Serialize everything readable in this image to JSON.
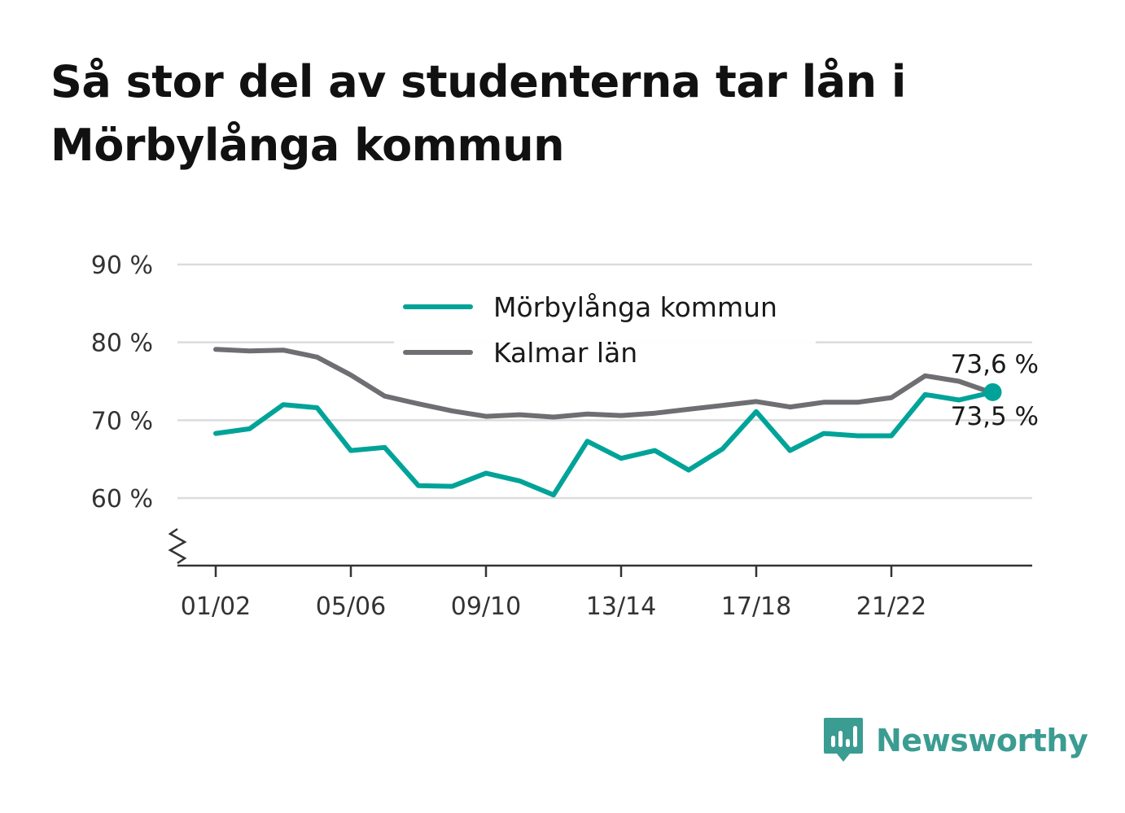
{
  "title": "Så stor del av studenterna tar lån i Mörbylånga kommun",
  "brand": {
    "name": "Newsworthy",
    "icon": "newsworthy-logo-icon",
    "color": "#3b9c92"
  },
  "chart_data": {
    "type": "line",
    "title": "Så stor del av studenterna tar lån i Mörbylånga kommun",
    "xlabel": "",
    "ylabel": "",
    "ylim": [
      51,
      90
    ],
    "yticks": [
      60,
      70,
      80,
      90
    ],
    "ytick_labels": [
      "60 %",
      "70 %",
      "80 %",
      "90 %"
    ],
    "y_axis_break": true,
    "grid": true,
    "legend_position": "top-center",
    "x": [
      "01/02",
      "02/03",
      "03/04",
      "04/05",
      "05/06",
      "06/07",
      "07/08",
      "08/09",
      "09/10",
      "10/11",
      "11/12",
      "12/13",
      "13/14",
      "14/15",
      "15/16",
      "16/17",
      "17/18",
      "18/19",
      "19/20",
      "20/21",
      "21/22",
      "22/23",
      "23/24",
      "24/25"
    ],
    "x_tick_labels": [
      "01/02",
      "05/06",
      "09/10",
      "13/14",
      "17/18",
      "21/22"
    ],
    "series": [
      {
        "name": "Mörbylånga kommun",
        "color": "#00a398",
        "values": [
          68.3,
          68.9,
          72.0,
          71.6,
          66.1,
          66.5,
          61.6,
          61.5,
          63.2,
          62.2,
          60.4,
          67.3,
          65.1,
          66.1,
          63.6,
          66.3,
          71.1,
          66.1,
          68.3,
          68.0,
          68.0,
          73.3,
          72.6,
          73.6
        ],
        "end_label": "73,6 %"
      },
      {
        "name": "Kalmar län",
        "color": "#6e6e73",
        "values": [
          79.1,
          78.9,
          79.0,
          78.1,
          75.8,
          73.1,
          72.1,
          71.2,
          70.5,
          70.7,
          70.4,
          70.8,
          70.6,
          70.9,
          71.4,
          71.9,
          72.4,
          71.7,
          72.3,
          72.3,
          72.9,
          75.7,
          75.0,
          73.5
        ],
        "end_label": "73,5 %"
      }
    ]
  }
}
